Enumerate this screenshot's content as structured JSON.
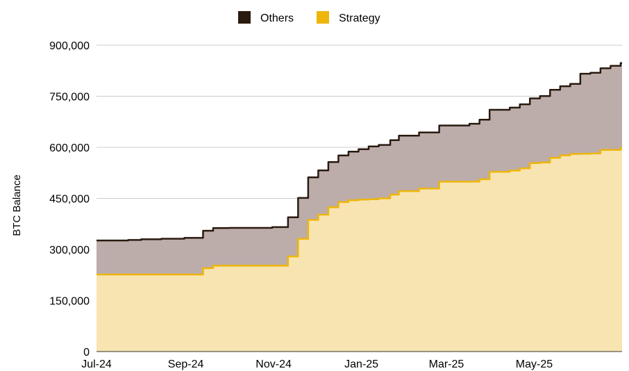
{
  "chart_data": {
    "type": "area",
    "stacked": true,
    "title": "",
    "xlabel": "",
    "ylabel": "BTC Balance",
    "ylim": [
      0,
      900000
    ],
    "yticks": [
      0,
      150000,
      300000,
      450000,
      600000,
      750000,
      900000
    ],
    "ytick_labels": [
      "0",
      "150,000",
      "300,000",
      "450,000",
      "600,000",
      "750,000",
      "900,000"
    ],
    "xlim": [
      "2024-07-01",
      "2025-07-01"
    ],
    "xticks": [
      "2024-07-01",
      "2024-09-01",
      "2024-11-01",
      "2025-01-01",
      "2025-03-01",
      "2025-05-01"
    ],
    "xtick_labels": [
      "Jul-24",
      "Sep-24",
      "Nov-24",
      "Jan-25",
      "Mar-25",
      "May-25"
    ],
    "grid": "horizontal",
    "legend_position": "top",
    "x": [
      "2024-07-01",
      "2024-07-23",
      "2024-08-01",
      "2024-08-15",
      "2024-08-31",
      "2024-09-13",
      "2024-09-20",
      "2024-10-01",
      "2024-10-31",
      "2024-11-11",
      "2024-11-18",
      "2024-11-25",
      "2024-12-02",
      "2024-12-09",
      "2024-12-16",
      "2024-12-23",
      "2024-12-30",
      "2025-01-06",
      "2025-01-13",
      "2025-01-21",
      "2025-01-27",
      "2025-02-10",
      "2025-02-24",
      "2025-03-17",
      "2025-03-24",
      "2025-03-31",
      "2025-04-14",
      "2025-04-21",
      "2025-04-28",
      "2025-05-05",
      "2025-05-12",
      "2025-05-19",
      "2025-05-26",
      "2025-06-02",
      "2025-06-09",
      "2025-06-16",
      "2025-06-23",
      "2025-06-30"
    ],
    "series": [
      {
        "name": "Strategy",
        "color": "#EEB60A",
        "fill": "#F8E4B0",
        "values": [
          226331,
          226331,
          226331,
          226331,
          226331,
          244800,
          252220,
          252220,
          252220,
          279420,
          331200,
          386700,
          402100,
          423650,
          439000,
          444262,
          446400,
          447470,
          450000,
          461000,
          471107,
          478740,
          499096,
          499226,
          506137,
          528185,
          531644,
          538200,
          553555,
          555450,
          568840,
          576230,
          580250,
          580955,
          582000,
          592100,
          592345,
          597325
        ]
      },
      {
        "name": "Others",
        "color": "#2A1A0F",
        "fill": "#BCADAB",
        "values": [
          100000,
          101500,
          103500,
          105000,
          107500,
          110000,
          110500,
          111000,
          113300,
          115000,
          120000,
          125000,
          130000,
          133000,
          137000,
          143000,
          148000,
          155000,
          157000,
          160000,
          163000,
          165000,
          165000,
          170000,
          175000,
          182000,
          185000,
          188000,
          190000,
          195000,
          200000,
          203000,
          206000,
          235000,
          237000,
          240000,
          247000,
          250000
        ]
      }
    ]
  }
}
